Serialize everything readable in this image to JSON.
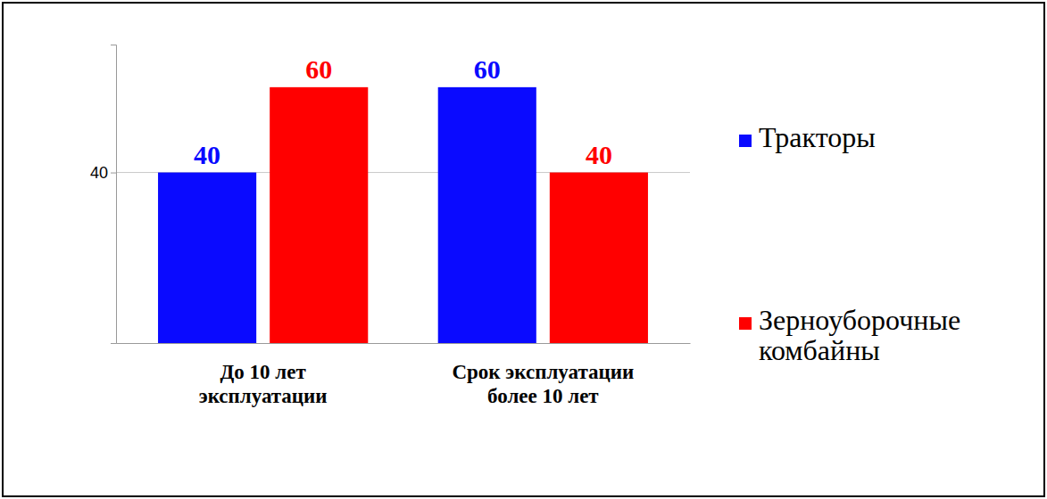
{
  "chart_data": {
    "type": "bar",
    "categories": [
      "До 10 лет эксплуатации",
      "Срок эксплуатации более 10 лет"
    ],
    "series": [
      {
        "name": "Тракторы",
        "color": "#0a0aff",
        "values": [
          40,
          60
        ]
      },
      {
        "name": "Зерноуборочные комбайны",
        "color": "#ff0000",
        "values": [
          60,
          40
        ]
      }
    ],
    "ylim": [
      0,
      70
    ],
    "yticks": [
      40
    ],
    "grid": true,
    "legend": "right",
    "data_labels": true
  }
}
